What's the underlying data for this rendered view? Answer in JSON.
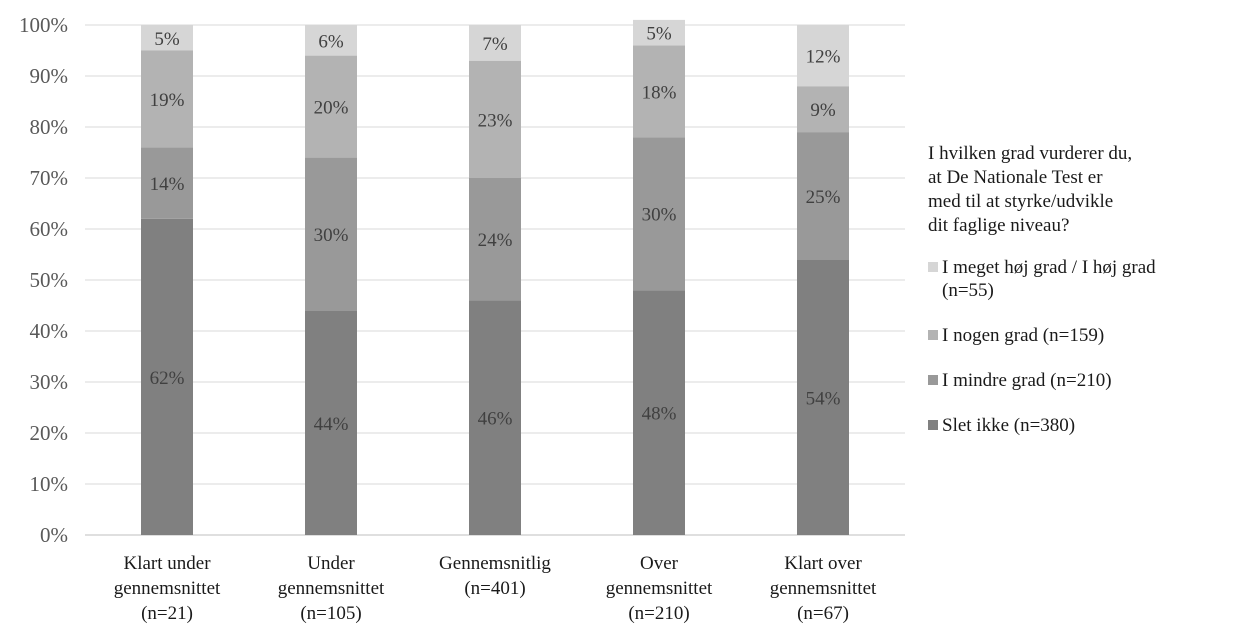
{
  "chart_data": {
    "type": "bar",
    "stacked": true,
    "percent": true,
    "categories": [
      [
        "Klart under",
        "gennemsnittet",
        "(n=21)"
      ],
      [
        "Under",
        "gennemsnittet",
        "(n=105)"
      ],
      [
        "Gennemsnitlig",
        "(n=401)"
      ],
      [
        "Over",
        "gennemsnittet",
        "(n=210)"
      ],
      [
        "Klart over",
        "gennemsnittet",
        "(n=67)"
      ]
    ],
    "series": [
      {
        "name": "Slet ikke (n=380)",
        "color": "#808080",
        "values": [
          62,
          44,
          46,
          48,
          54
        ],
        "labels": [
          "62%",
          "44%",
          "46%",
          "48%",
          "54%"
        ]
      },
      {
        "name": "I mindre grad (n=210)",
        "color": "#999999",
        "values": [
          14,
          30,
          24,
          30,
          25
        ],
        "labels": [
          "14%",
          "30%",
          "24%",
          "30%",
          "25%"
        ]
      },
      {
        "name": "I nogen grad (n=159)",
        "color": "#b3b3b3",
        "values": [
          19,
          20,
          23,
          18,
          9
        ],
        "labels": [
          "19%",
          "20%",
          "23%",
          "18%",
          "9%"
        ]
      },
      {
        "name": "I meget høj grad / I høj grad (n=55)",
        "color": "#d6d6d6",
        "values": [
          5,
          6,
          7,
          5,
          12
        ],
        "labels": [
          "5%",
          "6%",
          "7%",
          "5%",
          "12%"
        ]
      }
    ],
    "yticks": [
      "0%",
      "10%",
      "20%",
      "30%",
      "40%",
      "50%",
      "60%",
      "70%",
      "80%",
      "90%",
      "100%"
    ],
    "ylim": [
      0,
      100
    ],
    "grid": true,
    "legend_position": "right",
    "legend_title": "I hvilken grad vurderer du, at De Nationale Test er med til at styrke/udvikle dit faglige niveau?",
    "legend_title_lines": [
      "I hvilken grad vurderer du,",
      "at De Nationale Test er",
      "med til at styrke/udvikle",
      "dit faglige niveau?"
    ],
    "legend_items": [
      {
        "lines": [
          "I meget høj grad / I høj grad",
          "(n=55)"
        ],
        "color": "#d6d6d6"
      },
      {
        "lines": [
          "I nogen grad (n=159)"
        ],
        "color": "#b3b3b3"
      },
      {
        "lines": [
          "I mindre grad (n=210)"
        ],
        "color": "#999999"
      },
      {
        "lines": [
          "Slet ikke (n=380)"
        ],
        "color": "#808080"
      }
    ]
  }
}
